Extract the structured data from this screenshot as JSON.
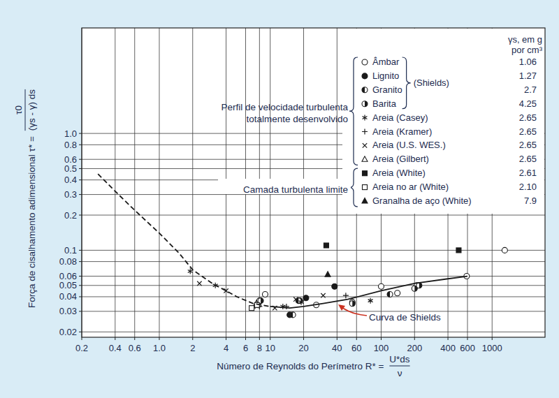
{
  "chart_data": {
    "type": "scatter",
    "log": true,
    "grid": true,
    "legend": "upper right",
    "xlabel": "Número de Reynolds do Perímetro R* =",
    "xlabel_numerator": "U*ds",
    "xlabel_denominator": "ν",
    "ylabel": "Força de cisalhamento adimensional τ* =",
    "ylabel_numerator": "τ0",
    "ylabel_denominator": "(γs - γ) ds",
    "legend_title": [
      "γs, em g",
      "por cm³"
    ],
    "legend_group": {
      "label": "(Shields)",
      "members": [
        "Âmbar",
        "Lignito",
        "Granito",
        "Barita"
      ]
    },
    "annotations": [
      {
        "lines": [
          "Perfil de velocidade turbulenta",
          "totalmente desenvolvido"
        ]
      },
      {
        "lines": [
          "Camada turbulenta limite"
        ]
      },
      {
        "lines": [
          "Curva de Shields"
        ]
      }
    ],
    "xlim": [
      0.2,
      3000
    ],
    "ylim": [
      0.018,
      8
    ],
    "xticks": [
      0.2,
      0.4,
      0.6,
      {
        "value": 1,
        "label": "1.0"
      },
      2,
      4,
      6,
      8,
      10,
      20,
      40,
      60,
      100,
      200,
      400,
      600,
      1000
    ],
    "yticks": [
      0.02,
      0.03,
      0.04,
      0.05,
      0.06,
      0.08,
      0.1,
      0.2,
      0.3,
      0.4,
      0.5,
      0.6,
      0.8,
      {
        "value": 1,
        "label": "1.0"
      }
    ],
    "series": [
      {
        "name": "Âmbar",
        "density": 1.06,
        "type": "scatter",
        "marker": "circle-open",
        "color": "#1a1a1a",
        "x": [
          8,
          9,
          26,
          55,
          100,
          140,
          210,
          590,
          1300
        ],
        "values": [
          0.037,
          0.042,
          0.034,
          0.036,
          0.049,
          0.043,
          0.05,
          0.06,
          0.1
        ]
      },
      {
        "name": "Lignito",
        "density": 1.27,
        "type": "scatter",
        "marker": "circle-filled",
        "color": "#1a1a1a",
        "x": [
          15,
          18.5,
          21,
          38
        ],
        "values": [
          0.028,
          0.037,
          0.039,
          0.049
        ]
      },
      {
        "name": "Granito",
        "density": 2.7,
        "type": "scatter",
        "marker": "circle-half-left",
        "color": "#1a1a1a",
        "x": [
          7.8,
          16,
          18,
          120
        ],
        "values": [
          0.034,
          0.028,
          0.037,
          0.042
        ]
      },
      {
        "name": "Barita",
        "density": 4.25,
        "type": "scatter",
        "marker": "circle-half-right",
        "color": "#1a1a1a",
        "x": [
          8.2,
          55,
          200,
          220
        ],
        "values": [
          0.037,
          0.035,
          0.047,
          0.05
        ]
      },
      {
        "name": "Areia (Casey)",
        "density": 2.65,
        "type": "scatter",
        "marker": "asterisk",
        "color": "#1a1a1a",
        "x": [
          1.9,
          3.2,
          13,
          19,
          80
        ],
        "values": [
          0.066,
          0.05,
          0.033,
          0.036,
          0.037
        ]
      },
      {
        "name": "Areia (Kramer)",
        "density": 2.65,
        "type": "scatter",
        "marker": "plus",
        "color": "#1a1a1a",
        "x": [
          7,
          8,
          14,
          48
        ],
        "values": [
          0.032,
          0.033,
          0.033,
          0.041
        ]
      },
      {
        "name": "Areia (U.S. WES.)",
        "density": 2.65,
        "type": "scatter",
        "marker": "x",
        "color": "#1a1a1a",
        "x": [
          2.3,
          4,
          11,
          17,
          30
        ],
        "values": [
          0.052,
          0.045,
          0.032,
          0.038,
          0.041
        ]
      },
      {
        "name": "Areia (Gilbert)",
        "density": 2.65,
        "type": "scatter",
        "marker": "triangle-open",
        "color": "#1a1a1a",
        "x": [
          7.5
        ],
        "values": [
          0.035
        ]
      },
      {
        "name": "Areia (White)",
        "density": 2.61,
        "type": "scatter",
        "marker": "square-filled",
        "color": "#1a1a1a",
        "x": [
          32,
          500
        ],
        "values": [
          0.11,
          0.1
        ]
      },
      {
        "name": "Areia no ar (White)",
        "density": 2.1,
        "density_label": "2.10",
        "type": "scatter",
        "marker": "square-open",
        "color": "#1a1a1a",
        "x": [
          6.8,
          7.6
        ],
        "values": [
          0.032,
          0.034
        ]
      },
      {
        "name": "Granalha de aço (White)",
        "density": 7.9,
        "type": "scatter",
        "marker": "triangle-filled",
        "color": "#1a1a1a",
        "x": [
          33
        ],
        "values": [
          0.062
        ]
      },
      {
        "type": "line",
        "line_style": "dashed",
        "color": "#1a1a1a",
        "x": [
          0.28,
          0.4,
          0.6,
          1,
          1.5,
          2,
          3,
          4,
          5,
          7,
          10
        ],
        "values": [
          0.45,
          0.32,
          0.22,
          0.14,
          0.095,
          0.068,
          0.052,
          0.045,
          0.04,
          0.035,
          0.033
        ]
      },
      {
        "type": "line",
        "line_style": "solid",
        "color": "#1a1a1a",
        "x": [
          10,
          15,
          20,
          30,
          50,
          100,
          200,
          400,
          600
        ],
        "values": [
          0.033,
          0.032,
          0.033,
          0.035,
          0.038,
          0.045,
          0.052,
          0.057,
          0.06
        ]
      }
    ]
  }
}
